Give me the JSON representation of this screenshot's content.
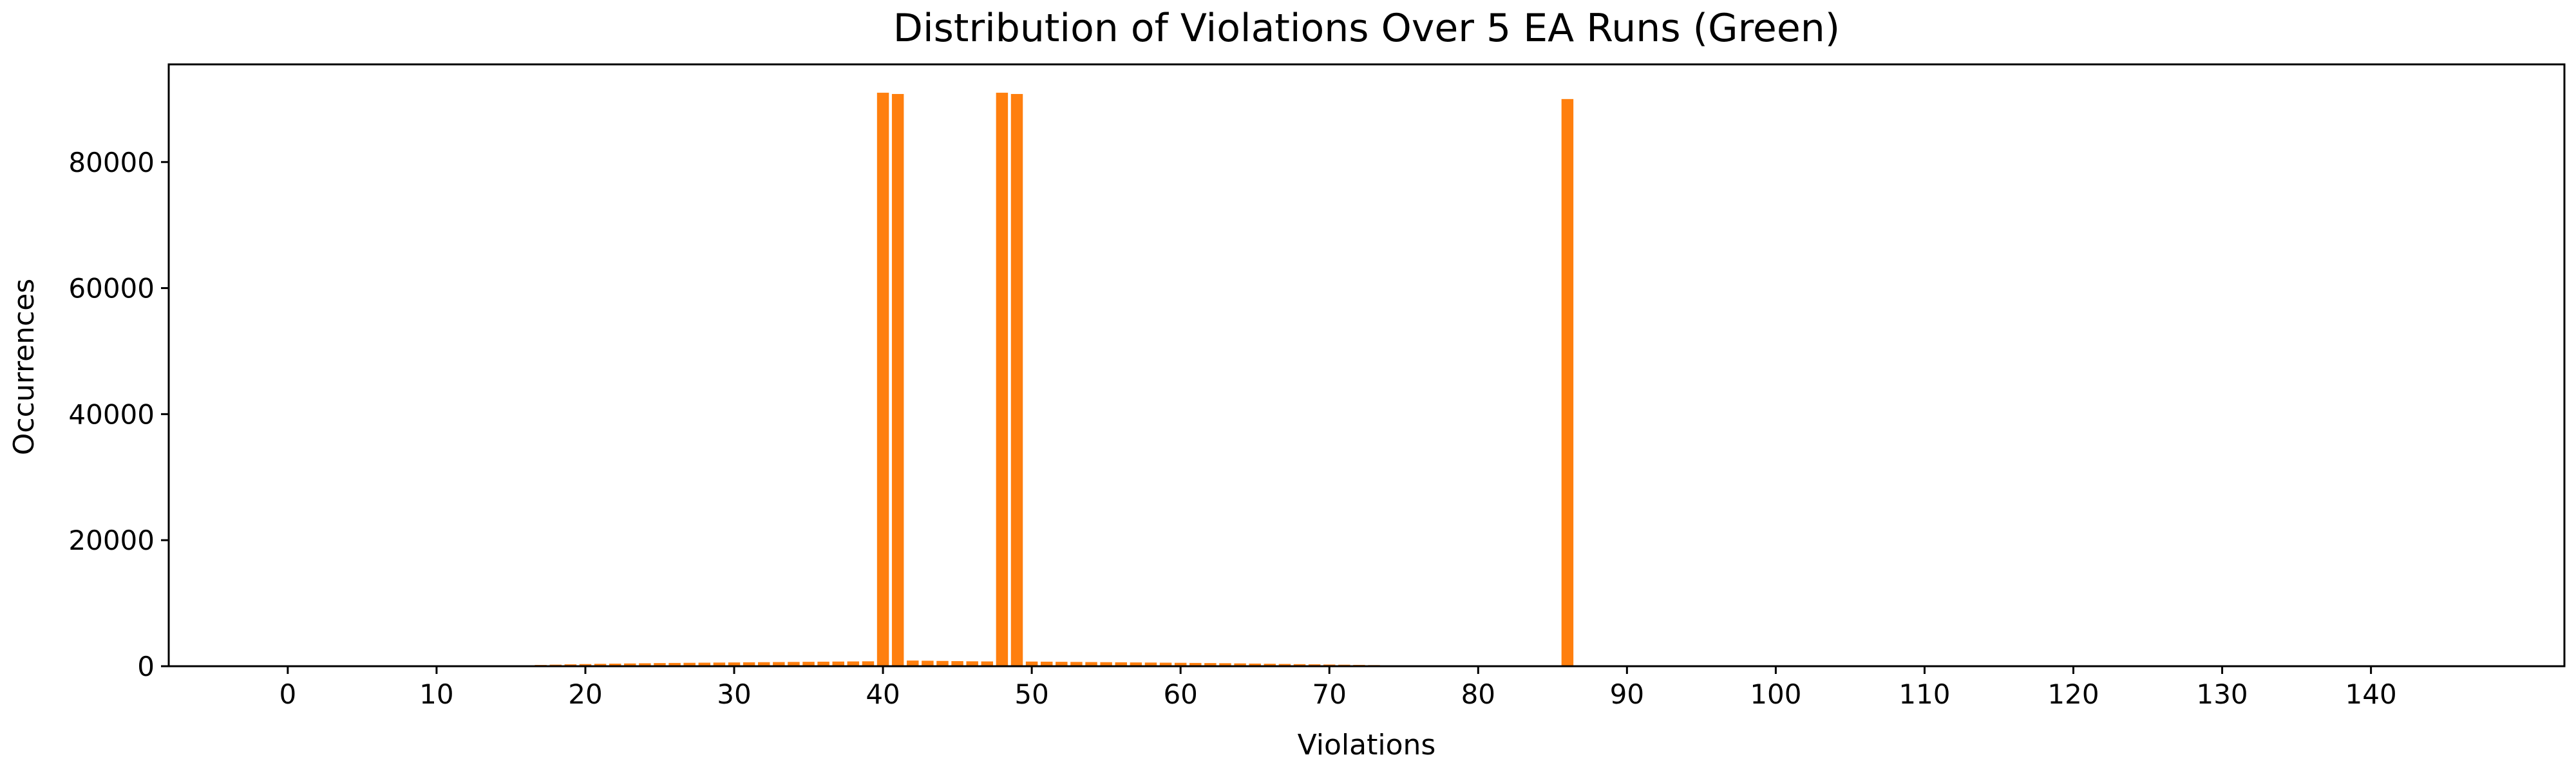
{
  "chart_data": {
    "type": "bar",
    "title": "Distribution of Violations Over 5 EA Runs (Green)",
    "xlabel": "Violations",
    "ylabel": "Occurrences",
    "xlim": [
      -8,
      153
    ],
    "ylim": [
      0,
      95500
    ],
    "xticks": [
      0,
      10,
      20,
      30,
      40,
      50,
      60,
      70,
      80,
      90,
      100,
      110,
      120,
      130,
      140
    ],
    "yticks": [
      0,
      20000,
      40000,
      60000,
      80000
    ],
    "xtick_labels": [
      "0",
      "10",
      "20",
      "30",
      "40",
      "50",
      "60",
      "70",
      "80",
      "90",
      "100",
      "110",
      "120",
      "130",
      "140"
    ],
    "ytick_labels": [
      "0",
      "20000",
      "40000",
      "60000",
      "80000"
    ],
    "grid": false,
    "legend": "none",
    "bar_color": "#ff7f0e",
    "series": [
      {
        "x": [
          14,
          15,
          16,
          17,
          18,
          19,
          20,
          21,
          22,
          23,
          24,
          25,
          26,
          27,
          28,
          29,
          30,
          31,
          32,
          33,
          34,
          35,
          36,
          37,
          38,
          39,
          40,
          41,
          42,
          43,
          44,
          45,
          46,
          47,
          48,
          49,
          50,
          51,
          52,
          53,
          54,
          55,
          56,
          57,
          58,
          59,
          60,
          61,
          62,
          63,
          64,
          65,
          66,
          67,
          68,
          69,
          70,
          71,
          72,
          73,
          74,
          75,
          76,
          77,
          86
        ],
        "values": [
          60,
          100,
          150,
          200,
          250,
          300,
          340,
          380,
          410,
          440,
          470,
          500,
          520,
          540,
          560,
          580,
          600,
          620,
          640,
          660,
          680,
          700,
          720,
          740,
          760,
          780,
          91000,
          90800,
          900,
          870,
          840,
          810,
          780,
          760,
          91000,
          90800,
          740,
          720,
          700,
          680,
          660,
          640,
          620,
          600,
          580,
          560,
          540,
          520,
          500,
          480,
          450,
          420,
          390,
          360,
          330,
          300,
          270,
          240,
          210,
          180,
          150,
          120,
          90,
          60,
          90000
        ]
      }
    ]
  }
}
